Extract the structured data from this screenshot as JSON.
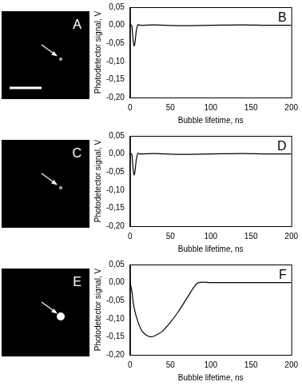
{
  "images": [
    {
      "label": "A"
    },
    {
      "label": "C"
    },
    {
      "label": "E"
    }
  ],
  "chart_data": [
    {
      "type": "line",
      "panel": "B",
      "x_label": "Bubble lifetime, ns",
      "y_label": "Photodetector signal, V",
      "x": [
        0,
        2,
        3,
        4,
        5,
        6,
        7,
        8,
        10,
        12,
        30,
        60,
        100,
        140,
        170,
        200
      ],
      "values": [
        0,
        0,
        -0.02,
        -0.045,
        -0.057,
        -0.05,
        -0.03,
        -0.012,
        0.002,
        0,
        0.001,
        -0.001,
        0,
        0.001,
        0,
        0
      ],
      "color": "#000000",
      "xlim": [
        0,
        200
      ],
      "xticks": [
        0,
        50,
        100,
        150,
        200
      ],
      "ylim": [
        -0.2,
        0.05
      ],
      "yticks": [
        {
          "value": -0.2,
          "label": "-0,20"
        },
        {
          "value": -0.15,
          "label": "-0,15"
        },
        {
          "value": -0.1,
          "label": "-0,10"
        },
        {
          "value": -0.05,
          "label": "-0,05"
        },
        {
          "value": 0,
          "label": "0,00"
        },
        {
          "value": 0.05,
          "label": "0,05"
        }
      ],
      "grid": false
    },
    {
      "type": "line",
      "panel": "D",
      "x_label": "Bubble lifetime, ns",
      "y_label": "Photodetector signal, V",
      "x": [
        0,
        2,
        3,
        4,
        5,
        6,
        7,
        8,
        10,
        12,
        30,
        60,
        100,
        140,
        170,
        200
      ],
      "values": [
        0,
        0,
        -0.02,
        -0.045,
        -0.058,
        -0.05,
        -0.03,
        -0.012,
        0.002,
        0,
        0.001,
        -0.001,
        0,
        0.001,
        0,
        0
      ],
      "color": "#000000",
      "xlim": [
        0,
        200
      ],
      "xticks": [
        0,
        50,
        100,
        150,
        200
      ],
      "ylim": [
        -0.2,
        0.05
      ],
      "yticks": [
        {
          "value": -0.2,
          "label": "-0,20"
        },
        {
          "value": -0.15,
          "label": "-0,15"
        },
        {
          "value": -0.1,
          "label": "-0,10"
        },
        {
          "value": -0.05,
          "label": "-0,05"
        },
        {
          "value": 0,
          "label": "0,00"
        },
        {
          "value": 0.05,
          "label": "0,05"
        }
      ],
      "grid": false
    },
    {
      "type": "line",
      "panel": "F",
      "x_label": "Bubble lifetime, ns",
      "y_label": "Photodetector signal, V",
      "x": [
        0,
        2,
        5,
        10,
        15,
        20,
        25,
        30,
        40,
        50,
        60,
        70,
        80,
        85,
        100,
        150,
        200
      ],
      "values": [
        0,
        -0.02,
        -0.07,
        -0.11,
        -0.135,
        -0.145,
        -0.15,
        -0.148,
        -0.135,
        -0.11,
        -0.08,
        -0.045,
        -0.01,
        0,
        0,
        0,
        0
      ],
      "color": "#000000",
      "xlim": [
        0,
        200
      ],
      "xticks": [
        0,
        50,
        100,
        150,
        200
      ],
      "ylim": [
        -0.2,
        0.05
      ],
      "yticks": [
        {
          "value": -0.2,
          "label": "-0,20"
        },
        {
          "value": -0.15,
          "label": "-0,15"
        },
        {
          "value": -0.1,
          "label": "-0,10"
        },
        {
          "value": -0.05,
          "label": "-0,05"
        },
        {
          "value": 0,
          "label": "0,00"
        },
        {
          "value": 0.05,
          "label": "0,05"
        }
      ],
      "grid": false
    }
  ]
}
